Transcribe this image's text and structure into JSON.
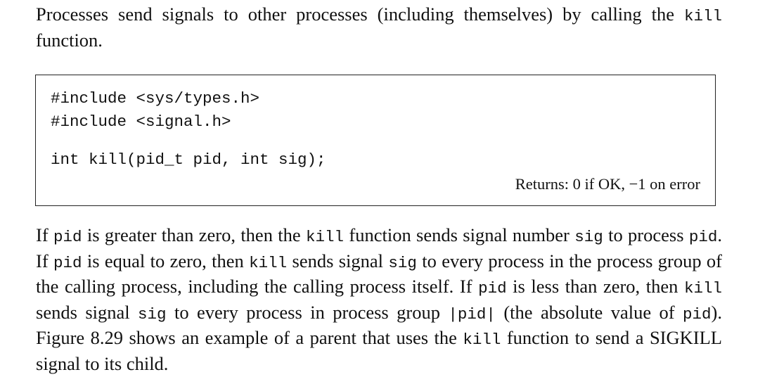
{
  "intro": {
    "t1": "Processes send signals to other processes (including themselves) by calling the ",
    "code1": "kill",
    "t2": " function."
  },
  "box": {
    "code_lines": [
      "#include <sys/types.h>",
      "#include <signal.h>",
      "int kill(pid_t pid, int sig);"
    ],
    "returns": "Returns: 0 if OK, −1 on error"
  },
  "body_para": {
    "s1": "If ",
    "c1": "pid",
    "s2": " is greater than zero, then the ",
    "c2": "kill",
    "s3": " function sends signal number ",
    "c3": "sig",
    "s4": " to process ",
    "c4": "pid",
    "s5": ". If ",
    "c5": "pid",
    "s6": " is equal to zero, then ",
    "c6": "kill",
    "s7": " sends signal ",
    "c7": "sig",
    "s8": " to every process in the process group of the calling process, including the calling process itself. If ",
    "c8": "pid",
    "s9": " is less than zero, then ",
    "c9": "kill",
    "s10": " sends signal ",
    "c10": "sig",
    "s11": " to every process in process group ",
    "c11": "|pid|",
    "s12": " (the absolute value of ",
    "c12": "pid",
    "s13": "). Figure 8.29 shows an example of a parent that uses the ",
    "c13": "kill",
    "s14": " function to send a SIGKILL signal to its child."
  }
}
